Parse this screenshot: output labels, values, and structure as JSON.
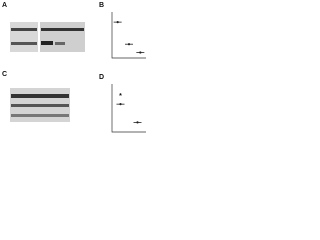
{
  "panel_labels": [
    "A",
    "B",
    "C",
    "D"
  ],
  "chart_data": [
    {
      "type": "strip",
      "categories": [
        null,
        null,
        null
      ],
      "values": [
        78,
        30,
        12
      ],
      "ylim": [
        0,
        100
      ],
      "color": "#222222"
    },
    {
      "type": "strip",
      "categories": [
        null,
        null
      ],
      "values": [
        58,
        20
      ],
      "ylim": [
        0,
        100
      ],
      "color": "#222222",
      "annotation": "*"
    }
  ]
}
